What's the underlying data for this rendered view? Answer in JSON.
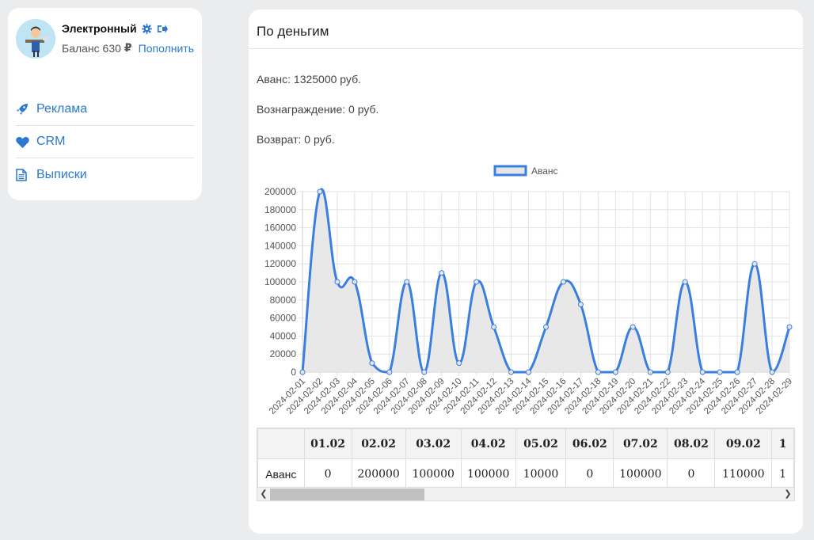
{
  "user": {
    "name": "Электронный",
    "balance_label": "Баланс 630",
    "currency": "₽",
    "topup_label": "Пополнить"
  },
  "nav": [
    {
      "label": "Реклама",
      "icon": "rocket-icon"
    },
    {
      "label": "CRM",
      "icon": "heart-icon"
    },
    {
      "label": "Выписки",
      "icon": "document-icon"
    }
  ],
  "main": {
    "title": "По деньгим",
    "advance": "Аванс: 1325000 руб.",
    "reward": "Вознаграждение: 0 руб.",
    "refund": "Возврат: 0 руб."
  },
  "colors": {
    "accent": "#2b78d0",
    "line": "#3a7fe0",
    "fill": "#e6e6e6"
  },
  "chart_data": {
    "type": "line",
    "legend": "Аванс",
    "legend_position": "top",
    "grid": true,
    "ylim": [
      0,
      200000
    ],
    "yticks": [
      0,
      20000,
      40000,
      60000,
      80000,
      100000,
      120000,
      140000,
      160000,
      180000,
      200000
    ],
    "x": [
      "2024-02-01",
      "2024-02-02",
      "2024-02-03",
      "2024-02-04",
      "2024-02-05",
      "2024-02-06",
      "2024-02-07",
      "2024-02-08",
      "2024-02-09",
      "2024-02-10",
      "2024-02-11",
      "2024-02-12",
      "2024-02-13",
      "2024-02-14",
      "2024-02-15",
      "2024-02-16",
      "2024-02-17",
      "2024-02-18",
      "2024-02-19",
      "2024-02-20",
      "2024-02-21",
      "2024-02-22",
      "2024-02-23",
      "2024-02-24",
      "2024-02-25",
      "2024-02-26",
      "2024-02-27",
      "2024-02-28",
      "2024-02-29"
    ],
    "series": [
      {
        "name": "Аванс",
        "values": [
          0,
          200000,
          100000,
          100000,
          10000,
          0,
          100000,
          0,
          110000,
          10000,
          100000,
          50000,
          0,
          0,
          50000,
          100000,
          75000,
          0,
          0,
          50000,
          0,
          0,
          100000,
          0,
          0,
          0,
          120000,
          0,
          50000
        ]
      }
    ]
  },
  "table": {
    "row_label": "Аванс",
    "headers": [
      "01.02",
      "02.02",
      "03.02",
      "04.02",
      "05.02",
      "06.02",
      "07.02",
      "08.02",
      "09.02",
      "1"
    ],
    "values": [
      "0",
      "200000",
      "100000",
      "100000",
      "10000",
      "0",
      "100000",
      "0",
      "110000",
      "1"
    ]
  }
}
